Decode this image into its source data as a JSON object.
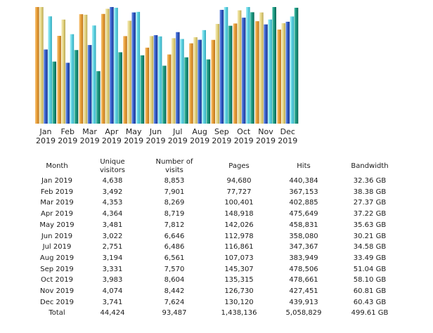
{
  "chart_data": {
    "type": "bar",
    "categories": [
      "Jan 2019",
      "Feb 2019",
      "Mar 2019",
      "Apr 2019",
      "May 2019",
      "Jun 2019",
      "Jul 2019",
      "Aug 2019",
      "Sep 2019",
      "Oct 2019",
      "Nov 2019",
      "Dec 2019"
    ],
    "x_tick_lines": [
      [
        "Jan",
        "2019"
      ],
      [
        "Feb",
        "2019"
      ],
      [
        "Mar",
        "2019"
      ],
      [
        "Apr",
        "2019"
      ],
      [
        "May",
        "2019"
      ],
      [
        "Jun",
        "2019"
      ],
      [
        "Jul",
        "2019"
      ],
      [
        "Aug",
        "2019"
      ],
      [
        "Sep",
        "2019"
      ],
      [
        "Oct",
        "2019"
      ],
      [
        "Nov",
        "2019"
      ],
      [
        "Dec",
        "2019"
      ]
    ],
    "series": [
      {
        "values": [
          4638,
          3492,
          4353,
          4364,
          3481,
          3022,
          2751,
          3194,
          3331,
          3983,
          4074,
          3741
        ],
        "color": "#e59b34"
      },
      {
        "values": [
          8853,
          7901,
          8269,
          8719,
          7812,
          6646,
          6486,
          6561,
          7570,
          8604,
          8442,
          7624
        ],
        "color": "#e7d88a"
      },
      {
        "values": [
          94680,
          77727,
          100401,
          148918,
          142026,
          112978,
          116861,
          107073,
          145307,
          135315,
          126730,
          130120
        ],
        "color": "#2e57c4"
      },
      {
        "values": [
          440384,
          367153,
          402885,
          475649,
          458831,
          358080,
          347367,
          383949,
          478506,
          478661,
          427451,
          439913
        ],
        "color": "#5fd3e3"
      },
      {
        "values": [
          32.36,
          38.38,
          27.37,
          37.22,
          35.63,
          30.21,
          34.58,
          33.49,
          51.04,
          58.1,
          60.81,
          60.43
        ],
        "color": "#17927c"
      }
    ],
    "grid": false,
    "legend": "none"
  },
  "table": {
    "headers": [
      [
        "Month"
      ],
      [
        "Unique",
        "visitors"
      ],
      [
        "Number of",
        "visits"
      ],
      [
        "Pages"
      ],
      [
        "Hits"
      ],
      [
        "Bandwidth"
      ]
    ],
    "rows": [
      [
        "Jan 2019",
        "4,638",
        "8,853",
        "94,680",
        "440,384",
        "32.36 GB"
      ],
      [
        "Feb 2019",
        "3,492",
        "7,901",
        "77,727",
        "367,153",
        "38.38 GB"
      ],
      [
        "Mar 2019",
        "4,353",
        "8,269",
        "100,401",
        "402,885",
        "27.37 GB"
      ],
      [
        "Apr 2019",
        "4,364",
        "8,719",
        "148,918",
        "475,649",
        "37.22 GB"
      ],
      [
        "May 2019",
        "3,481",
        "7,812",
        "142,026",
        "458,831",
        "35.63 GB"
      ],
      [
        "Jun 2019",
        "3,022",
        "6,646",
        "112,978",
        "358,080",
        "30.21 GB"
      ],
      [
        "Jul 2019",
        "2,751",
        "6,486",
        "116,861",
        "347,367",
        "34.58 GB"
      ],
      [
        "Aug 2019",
        "3,194",
        "6,561",
        "107,073",
        "383,949",
        "33.49 GB"
      ],
      [
        "Sep 2019",
        "3,331",
        "7,570",
        "145,307",
        "478,506",
        "51.04 GB"
      ],
      [
        "Oct 2019",
        "3,983",
        "8,604",
        "135,315",
        "478,661",
        "58.10 GB"
      ],
      [
        "Nov 2019",
        "4,074",
        "8,442",
        "126,730",
        "427,451",
        "60.81 GB"
      ],
      [
        "Dec 2019",
        "3,741",
        "7,624",
        "130,120",
        "439,913",
        "60.43 GB"
      ]
    ],
    "total": [
      "Total",
      "44,424",
      "93,487",
      "1,438,136",
      "5,058,829",
      "499.61 GB"
    ]
  }
}
